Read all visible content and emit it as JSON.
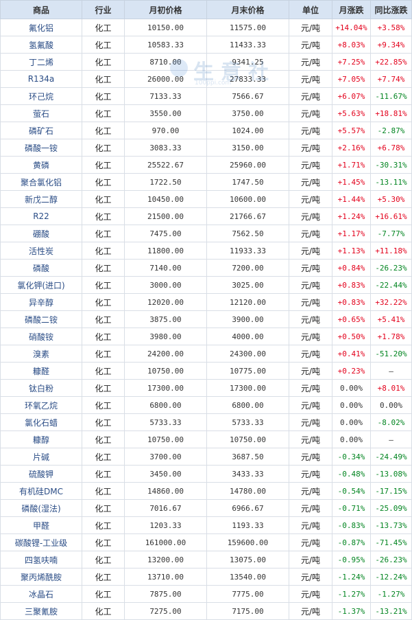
{
  "headers": [
    "商品",
    "行业",
    "月初价格",
    "月末价格",
    "单位",
    "月涨跌",
    "同比涨跌"
  ],
  "watermark": {
    "text": "生意社",
    "sub": "100ppi.com"
  },
  "colors": {
    "up": "#e3001b",
    "down": "#00841f",
    "header_bg": "#d8e4f3",
    "name_link": "#2b4d86"
  },
  "rows": [
    {
      "name": "氟化铝",
      "industry": "化工",
      "start": "10150.00",
      "end": "11575.00",
      "unit": "元/吨",
      "mom": "+14.04%",
      "yoy": "+3.58%"
    },
    {
      "name": "氢氟酸",
      "industry": "化工",
      "start": "10583.33",
      "end": "11433.33",
      "unit": "元/吨",
      "mom": "+8.03%",
      "yoy": "+9.34%"
    },
    {
      "name": "丁二烯",
      "industry": "化工",
      "start": "8710.00",
      "end": "9341.25",
      "unit": "元/吨",
      "mom": "+7.25%",
      "yoy": "+22.85%"
    },
    {
      "name": "R134a",
      "industry": "化工",
      "start": "26000.00",
      "end": "27833.33",
      "unit": "元/吨",
      "mom": "+7.05%",
      "yoy": "+7.74%"
    },
    {
      "name": "环己烷",
      "industry": "化工",
      "start": "7133.33",
      "end": "7566.67",
      "unit": "元/吨",
      "mom": "+6.07%",
      "yoy": "-11.67%"
    },
    {
      "name": "萤石",
      "industry": "化工",
      "start": "3550.00",
      "end": "3750.00",
      "unit": "元/吨",
      "mom": "+5.63%",
      "yoy": "+18.81%"
    },
    {
      "name": "磷矿石",
      "industry": "化工",
      "start": "970.00",
      "end": "1024.00",
      "unit": "元/吨",
      "mom": "+5.57%",
      "yoy": "-2.87%"
    },
    {
      "name": "磷酸一铵",
      "industry": "化工",
      "start": "3083.33",
      "end": "3150.00",
      "unit": "元/吨",
      "mom": "+2.16%",
      "yoy": "+6.78%"
    },
    {
      "name": "黄磷",
      "industry": "化工",
      "start": "25522.67",
      "end": "25960.00",
      "unit": "元/吨",
      "mom": "+1.71%",
      "yoy": "-30.31%"
    },
    {
      "name": "聚合氯化铝",
      "industry": "化工",
      "start": "1722.50",
      "end": "1747.50",
      "unit": "元/吨",
      "mom": "+1.45%",
      "yoy": "-13.11%"
    },
    {
      "name": "新戊二醇",
      "industry": "化工",
      "start": "10450.00",
      "end": "10600.00",
      "unit": "元/吨",
      "mom": "+1.44%",
      "yoy": "+5.30%"
    },
    {
      "name": "R22",
      "industry": "化工",
      "start": "21500.00",
      "end": "21766.67",
      "unit": "元/吨",
      "mom": "+1.24%",
      "yoy": "+16.61%"
    },
    {
      "name": "硼酸",
      "industry": "化工",
      "start": "7475.00",
      "end": "7562.50",
      "unit": "元/吨",
      "mom": "+1.17%",
      "yoy": "-7.77%"
    },
    {
      "name": "活性炭",
      "industry": "化工",
      "start": "11800.00",
      "end": "11933.33",
      "unit": "元/吨",
      "mom": "+1.13%",
      "yoy": "+11.18%"
    },
    {
      "name": "磷酸",
      "industry": "化工",
      "start": "7140.00",
      "end": "7200.00",
      "unit": "元/吨",
      "mom": "+0.84%",
      "yoy": "-26.23%"
    },
    {
      "name": "氯化钾(进口)",
      "industry": "化工",
      "start": "3000.00",
      "end": "3025.00",
      "unit": "元/吨",
      "mom": "+0.83%",
      "yoy": "-22.44%"
    },
    {
      "name": "异辛醇",
      "industry": "化工",
      "start": "12020.00",
      "end": "12120.00",
      "unit": "元/吨",
      "mom": "+0.83%",
      "yoy": "+32.22%"
    },
    {
      "name": "磷酸二铵",
      "industry": "化工",
      "start": "3875.00",
      "end": "3900.00",
      "unit": "元/吨",
      "mom": "+0.65%",
      "yoy": "+5.41%"
    },
    {
      "name": "硝酸铵",
      "industry": "化工",
      "start": "3980.00",
      "end": "4000.00",
      "unit": "元/吨",
      "mom": "+0.50%",
      "yoy": "+1.78%"
    },
    {
      "name": "溴素",
      "industry": "化工",
      "start": "24200.00",
      "end": "24300.00",
      "unit": "元/吨",
      "mom": "+0.41%",
      "yoy": "-51.20%"
    },
    {
      "name": "糠醛",
      "industry": "化工",
      "start": "10750.00",
      "end": "10775.00",
      "unit": "元/吨",
      "mom": "+0.23%",
      "yoy": "—"
    },
    {
      "name": "钛白粉",
      "industry": "化工",
      "start": "17300.00",
      "end": "17300.00",
      "unit": "元/吨",
      "mom": "0.00%",
      "yoy": "+8.01%"
    },
    {
      "name": "环氧乙烷",
      "industry": "化工",
      "start": "6800.00",
      "end": "6800.00",
      "unit": "元/吨",
      "mom": "0.00%",
      "yoy": "0.00%"
    },
    {
      "name": "氯化石蜡",
      "industry": "化工",
      "start": "5733.33",
      "end": "5733.33",
      "unit": "元/吨",
      "mom": "0.00%",
      "yoy": "-8.02%"
    },
    {
      "name": "糠醇",
      "industry": "化工",
      "start": "10750.00",
      "end": "10750.00",
      "unit": "元/吨",
      "mom": "0.00%",
      "yoy": "—"
    },
    {
      "name": "片碱",
      "industry": "化工",
      "start": "3700.00",
      "end": "3687.50",
      "unit": "元/吨",
      "mom": "-0.34%",
      "yoy": "-24.49%"
    },
    {
      "name": "硫酸钾",
      "industry": "化工",
      "start": "3450.00",
      "end": "3433.33",
      "unit": "元/吨",
      "mom": "-0.48%",
      "yoy": "-13.08%"
    },
    {
      "name": "有机硅DMC",
      "industry": "化工",
      "start": "14860.00",
      "end": "14780.00",
      "unit": "元/吨",
      "mom": "-0.54%",
      "yoy": "-17.15%"
    },
    {
      "name": "磷酸(湿法)",
      "industry": "化工",
      "start": "7016.67",
      "end": "6966.67",
      "unit": "元/吨",
      "mom": "-0.71%",
      "yoy": "-25.09%"
    },
    {
      "name": "甲醛",
      "industry": "化工",
      "start": "1203.33",
      "end": "1193.33",
      "unit": "元/吨",
      "mom": "-0.83%",
      "yoy": "-13.73%"
    },
    {
      "name": "碳酸锂-工业级",
      "industry": "化工",
      "start": "161000.00",
      "end": "159600.00",
      "unit": "元/吨",
      "mom": "-0.87%",
      "yoy": "-71.45%"
    },
    {
      "name": "四氢呋喃",
      "industry": "化工",
      "start": "13200.00",
      "end": "13075.00",
      "unit": "元/吨",
      "mom": "-0.95%",
      "yoy": "-26.23%"
    },
    {
      "name": "聚丙烯酰胺",
      "industry": "化工",
      "start": "13710.00",
      "end": "13540.00",
      "unit": "元/吨",
      "mom": "-1.24%",
      "yoy": "-12.24%"
    },
    {
      "name": "冰晶石",
      "industry": "化工",
      "start": "7875.00",
      "end": "7775.00",
      "unit": "元/吨",
      "mom": "-1.27%",
      "yoy": "-1.27%"
    },
    {
      "name": "三聚氰胺",
      "industry": "化工",
      "start": "7275.00",
      "end": "7175.00",
      "unit": "元/吨",
      "mom": "-1.37%",
      "yoy": "-13.21%"
    }
  ]
}
